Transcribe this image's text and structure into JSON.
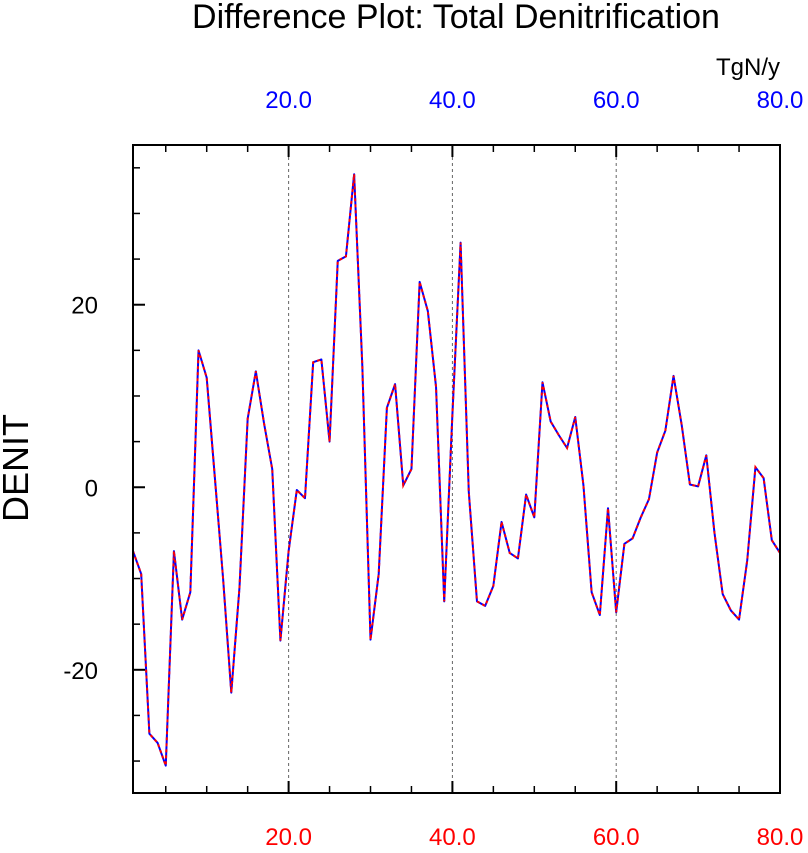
{
  "chart_data": {
    "type": "line",
    "title": "Difference Plot: Total Denitrification",
    "ylabel": "DENIT",
    "top_axis_units": "TgN/y",
    "xlim": [
      1,
      80
    ],
    "ylim": [
      -33.5,
      37.5
    ],
    "x_major_ticks": [
      20,
      40,
      60,
      80
    ],
    "x_minor_ticks": [
      5,
      10,
      15,
      25,
      30,
      35,
      45,
      50,
      55,
      65,
      70,
      75
    ],
    "x_tick_labels": [
      "20.0",
      "40.0",
      "60.0",
      "80.0"
    ],
    "y_major_ticks": [
      -20,
      0,
      20
    ],
    "y_minor_ticks": [
      -30,
      -25,
      -15,
      -10,
      -5,
      5,
      10,
      15,
      25,
      30,
      35
    ],
    "y_tick_labels": [
      "-20",
      "0",
      "20"
    ],
    "vertical_gridlines_at": [
      20,
      40,
      60
    ],
    "colors": {
      "bottom_tick_labels": "#ff0000",
      "top_tick_labels": "#0000ff",
      "line_solid": "#0000ff",
      "line_dashed": "#ff0000",
      "grid": "#666666",
      "frame": "#000000"
    },
    "x": [
      1,
      2,
      3,
      4,
      5,
      6,
      7,
      8,
      9,
      10,
      11,
      12,
      13,
      14,
      15,
      16,
      17,
      18,
      19,
      20,
      21,
      22,
      23,
      24,
      25,
      26,
      27,
      28,
      29,
      30,
      31,
      32,
      33,
      34,
      35,
      36,
      37,
      38,
      39,
      40,
      41,
      42,
      43,
      44,
      45,
      46,
      47,
      48,
      49,
      50,
      51,
      52,
      53,
      54,
      55,
      56,
      57,
      58,
      59,
      60,
      61,
      62,
      63,
      64,
      65,
      66,
      67,
      68,
      69,
      70,
      71,
      72,
      73,
      74,
      75,
      76,
      77,
      78,
      79,
      80
    ],
    "series": [
      {
        "values": [
          -7,
          -9.5,
          -27,
          -28,
          -30.5,
          -7,
          -14.5,
          -11.5,
          15,
          12,
          1,
          -10,
          -22.5,
          -11,
          7.5,
          12.7,
          7,
          2,
          -16.8,
          -7,
          -0.3,
          -1.2,
          13.7,
          14,
          5,
          24.8,
          25.3,
          34.3,
          13.3,
          -16.7,
          -9.5,
          8.7,
          11.3,
          0.2,
          2,
          22.5,
          19.3,
          11,
          -12.5,
          8,
          26.8,
          -0.5,
          -12.5,
          -13,
          -10.8,
          -3.8,
          -7.2,
          -7.8,
          -0.8,
          -3.3,
          11.5,
          7.2,
          5.7,
          4.3,
          7.7,
          0.2,
          -11.5,
          -14,
          -2.3,
          -13.7,
          -6.2,
          -5.6,
          -3.3,
          -1.3,
          3.8,
          6.2,
          12.2,
          6.8,
          0.3,
          0.1,
          3.5,
          -5,
          -11.7,
          -13.5,
          -14.5,
          -8,
          2.2,
          1,
          -5.8,
          -7.2
        ]
      }
    ]
  }
}
